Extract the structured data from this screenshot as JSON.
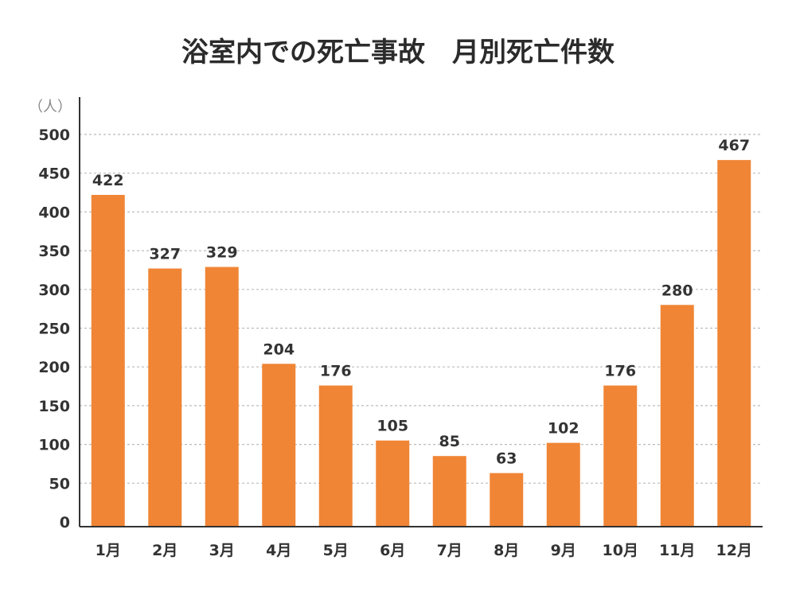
{
  "chart_data": {
    "type": "bar",
    "title": "浴室内での死亡事故　月別死亡件数",
    "ylabel": "（人）",
    "xlabel": "",
    "categories": [
      "1月",
      "2月",
      "3月",
      "4月",
      "5月",
      "6月",
      "7月",
      "8月",
      "9月",
      "10月",
      "11月",
      "12月"
    ],
    "values": [
      422,
      327,
      329,
      204,
      176,
      105,
      85,
      63,
      102,
      176,
      280,
      467
    ],
    "ylim": [
      0,
      500
    ],
    "yticks": [
      0,
      50,
      100,
      150,
      200,
      250,
      300,
      350,
      400,
      450,
      500
    ],
    "grid": true,
    "legend": "none",
    "bar_color": "#f08535",
    "axis_color": "#333333",
    "grid_color": "#bbbbbb"
  }
}
